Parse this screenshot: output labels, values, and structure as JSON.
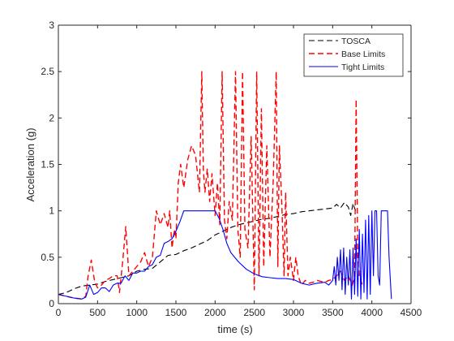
{
  "chart_data": {
    "type": "line",
    "title": "",
    "xlabel": "time (s)",
    "ylabel": "Acceleration (g)",
    "xlim": [
      0,
      4500
    ],
    "ylim": [
      0,
      3
    ],
    "xticks": [
      0,
      500,
      1000,
      1500,
      2000,
      2500,
      3000,
      3500,
      4000,
      4500
    ],
    "yticks": [
      0,
      0.5,
      1,
      1.5,
      2,
      2.5,
      3
    ],
    "xtick_labels": [
      "0",
      "500",
      "1000",
      "1500",
      "2000",
      "2500",
      "3000",
      "3500",
      "4000",
      "4500"
    ],
    "ytick_labels": [
      "0",
      "0.5",
      "1",
      "1.5",
      "2",
      "2.5",
      "3"
    ],
    "grid": false,
    "legend_position": "top-right",
    "series": [
      {
        "name": "TOSCA",
        "color": "#000000",
        "dash": "dashed",
        "x": [
          0,
          100,
          200,
          300,
          400,
          500,
          600,
          700,
          800,
          900,
          1000,
          1100,
          1200,
          1300,
          1400,
          1500,
          1600,
          1700,
          1800,
          1900,
          2000,
          2100,
          2200,
          2300,
          2400,
          2500,
          2600,
          2700,
          2800,
          2900,
          3000,
          3100,
          3200,
          3300,
          3400,
          3500,
          3550,
          3600,
          3650,
          3700,
          3730,
          3760,
          3790,
          3820
        ],
        "y": [
          0.1,
          0.12,
          0.16,
          0.19,
          0.2,
          0.21,
          0.24,
          0.26,
          0.28,
          0.3,
          0.35,
          0.37,
          0.38,
          0.45,
          0.52,
          0.53,
          0.57,
          0.6,
          0.64,
          0.68,
          0.74,
          0.78,
          0.82,
          0.85,
          0.87,
          0.89,
          0.91,
          0.92,
          0.94,
          0.96,
          0.97,
          0.99,
          1.0,
          1.01,
          1.02,
          1.03,
          1.07,
          1.03,
          1.09,
          1.04,
          0.95,
          1.08,
          1.0,
          0.98
        ]
      },
      {
        "name": "Base Limits",
        "color": "#ff0000",
        "dash": "dashed",
        "x": [
          0,
          100,
          200,
          300,
          350,
          380,
          420,
          460,
          500,
          550,
          600,
          650,
          700,
          750,
          780,
          820,
          860,
          900,
          950,
          1000,
          1050,
          1100,
          1150,
          1200,
          1250,
          1300,
          1350,
          1400,
          1420,
          1450,
          1480,
          1500,
          1530,
          1560,
          1600,
          1650,
          1700,
          1750,
          1800,
          1830,
          1850,
          1870,
          1900,
          1930,
          1960,
          2000,
          2030,
          2060,
          2090,
          2120,
          2150,
          2180,
          2220,
          2260,
          2290,
          2320,
          2350,
          2380,
          2420,
          2460,
          2500,
          2530,
          2560,
          2590,
          2620,
          2660,
          2700,
          2740,
          2780,
          2800,
          2820,
          2850,
          2880,
          2900,
          2930,
          2960,
          3000,
          3030,
          3060,
          3100,
          3150,
          3200,
          3250,
          3300,
          3350,
          3400,
          3450,
          3500,
          3550,
          3600,
          3650,
          3700,
          3750,
          3780,
          3800,
          3820,
          3840,
          3860,
          3880
        ],
        "y": [
          0.1,
          0.08,
          0.06,
          0.05,
          0.08,
          0.3,
          0.47,
          0.25,
          0.17,
          0.2,
          0.25,
          0.27,
          0.3,
          0.3,
          0.12,
          0.45,
          0.83,
          0.3,
          0.35,
          0.4,
          0.45,
          0.55,
          0.4,
          0.5,
          1.0,
          0.85,
          0.97,
          0.82,
          1.0,
          0.6,
          0.8,
          0.7,
          1.3,
          1.5,
          1.25,
          1.55,
          1.7,
          1.6,
          1.2,
          2.5,
          1.45,
          1.2,
          1.45,
          1.1,
          1.4,
          0.95,
          1.3,
          0.85,
          2.5,
          0.9,
          0.7,
          1.1,
          0.9,
          2.5,
          0.8,
          0.5,
          2.5,
          0.8,
          0.6,
          1.8,
          0.15,
          2.5,
          0.3,
          2.1,
          0.4,
          1.7,
          0.5,
          1.3,
          2.5,
          0.4,
          1.7,
          1.1,
          0.3,
          1.2,
          0.3,
          0.5,
          0.25,
          0.5,
          0.3,
          0.2,
          0.25,
          0.22,
          0.23,
          0.25,
          0.24,
          0.23,
          0.25,
          0.26,
          0.3,
          0.35,
          0.25,
          0.3,
          0.2,
          0.3,
          2.2,
          0.5,
          0.3,
          0.25,
          0.2
        ]
      },
      {
        "name": "Tight Limits",
        "color": "#0000ff",
        "dash": "solid",
        "x": [
          0,
          100,
          200,
          300,
          350,
          400,
          450,
          500,
          550,
          600,
          650,
          700,
          750,
          800,
          850,
          900,
          950,
          1000,
          1050,
          1100,
          1150,
          1200,
          1250,
          1300,
          1350,
          1400,
          1450,
          1500,
          1550,
          1600,
          1700,
          1800,
          1900,
          2000,
          2050,
          2100,
          2150,
          2200,
          2300,
          2400,
          2500,
          2600,
          2700,
          2800,
          2900,
          3000,
          3100,
          3200,
          3300,
          3400,
          3450,
          3500,
          3520,
          3540,
          3560,
          3580,
          3600,
          3620,
          3640,
          3660,
          3680,
          3700,
          3720,
          3740,
          3760,
          3780,
          3800,
          3820,
          3840,
          3860,
          3880,
          3900,
          3920,
          3940,
          3960,
          3980,
          4000,
          4020,
          4040,
          4060,
          4080,
          4100,
          4120,
          4150,
          4180,
          4200,
          4220,
          4250
        ],
        "y": [
          0.1,
          0.08,
          0.06,
          0.05,
          0.07,
          0.2,
          0.1,
          0.12,
          0.17,
          0.17,
          0.13,
          0.2,
          0.22,
          0.22,
          0.3,
          0.25,
          0.33,
          0.33,
          0.35,
          0.35,
          0.4,
          0.42,
          0.5,
          0.52,
          0.65,
          0.67,
          0.7,
          0.78,
          0.88,
          1.0,
          1.0,
          1.0,
          1.0,
          1.0,
          0.92,
          0.8,
          0.65,
          0.55,
          0.45,
          0.37,
          0.32,
          0.29,
          0.28,
          0.27,
          0.27,
          0.26,
          0.22,
          0.2,
          0.22,
          0.23,
          0.2,
          0.25,
          0.4,
          0.2,
          0.5,
          0.25,
          0.58,
          0.15,
          0.6,
          0.1,
          0.5,
          0.2,
          0.58,
          0.05,
          0.6,
          0.1,
          0.7,
          0.08,
          0.8,
          0.05,
          0.75,
          0.12,
          0.9,
          0.05,
          0.95,
          0.1,
          1.0,
          0.3,
          1.0,
          1.0,
          0.3,
          0.2,
          1.0,
          1.0,
          1.0,
          1.0,
          0.5,
          0.05
        ]
      }
    ]
  }
}
